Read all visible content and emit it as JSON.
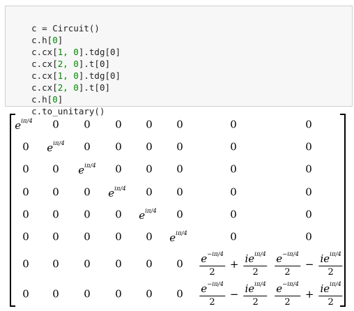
{
  "code": {
    "lines": [
      {
        "pre": "c = Circuit()",
        "num": "",
        "post": ""
      },
      {
        "pre": "c.h[",
        "num": "0",
        "post": "]"
      },
      {
        "pre": "c.cx[",
        "num": "1, 0",
        "post": "].tdg[0]"
      },
      {
        "pre": "c.cx[",
        "num": "2, 0",
        "post": "].t[0]"
      },
      {
        "pre": "c.cx[",
        "num": "1, 0",
        "post": "].tdg[0]"
      },
      {
        "pre": "c.cx[",
        "num": "2, 0",
        "post": "].t[0]"
      },
      {
        "pre": "c.h[",
        "num": "0",
        "post": "]"
      },
      {
        "pre": "c.to_unitary()",
        "num": "",
        "post": ""
      }
    ]
  },
  "matrix": {
    "zero": "0",
    "diag_base": "e",
    "diag_exp": "iπ/4",
    "neg_exp": "−iπ/4",
    "i": "i",
    "den": "2",
    "plus": "+",
    "minus": "−",
    "colors": {
      "text": "#000000"
    }
  }
}
